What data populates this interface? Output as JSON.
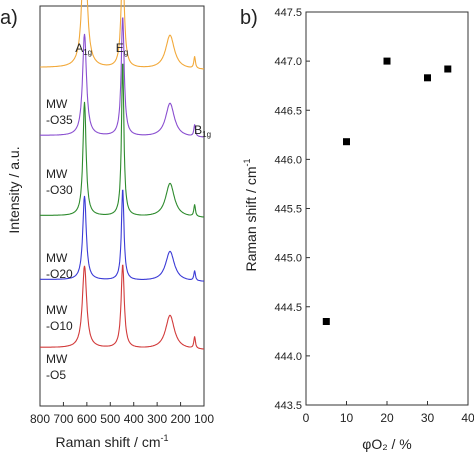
{
  "chart_data": [
    {
      "panel_label": "a)",
      "type": "line",
      "xlabel": "Raman shift / cm",
      "xlabel_sup": "-1",
      "ylabel": "Intensity / a.u.",
      "xlim": [
        800,
        100
      ],
      "xticks": [
        800,
        700,
        600,
        500,
        400,
        300,
        200,
        100
      ],
      "grid": false,
      "peak_labels": [
        {
          "main": "A",
          "sub": "1g",
          "x": 605
        },
        {
          "main": "E",
          "sub": "g",
          "x": 450
        },
        {
          "main": "B",
          "sub": "1g",
          "x": 140
        }
      ],
      "series": [
        {
          "name": "MW\n-O35",
          "name_lines": [
            "MW",
            "-O35"
          ],
          "color": "#f2a93b",
          "baseline": 0.84,
          "peaks": [
            [
              610,
              0.38,
              22
            ],
            [
              447,
              0.27,
              16
            ],
            [
              245,
              0.085,
              45
            ],
            [
              140,
              0.03,
              8
            ]
          ]
        },
        {
          "name": "MW\n-O30",
          "name_lines": [
            "MW",
            "-O30"
          ],
          "color": "#8a4fd0",
          "baseline": 0.67,
          "peaks": [
            [
              610,
              0.255,
              20
            ],
            [
              447,
              0.3,
              15
            ],
            [
              245,
              0.085,
              45
            ],
            [
              140,
              0.03,
              8
            ]
          ]
        },
        {
          "name": "MW\n-O20",
          "name_lines": [
            "MW",
            "-O20"
          ],
          "color": "#2e8b2e",
          "baseline": 0.47,
          "peaks": [
            [
              610,
              0.285,
              16
            ],
            [
              447,
              0.39,
              12
            ],
            [
              245,
              0.085,
              45
            ],
            [
              140,
              0.03,
              8
            ]
          ]
        },
        {
          "name": "MW\n-O10",
          "name_lines": [
            "MW",
            "-O10"
          ],
          "color": "#3b3bd6",
          "baseline": 0.31,
          "peaks": [
            [
              610,
              0.21,
              18
            ],
            [
              447,
              0.23,
              13
            ],
            [
              245,
              0.075,
              45
            ],
            [
              140,
              0.025,
              8
            ]
          ]
        },
        {
          "name": "MW\n-O5",
          "name_lines": [
            "MW",
            "-O5"
          ],
          "color": "#d23b3b",
          "baseline": 0.14,
          "peaks": [
            [
              610,
              0.205,
              22
            ],
            [
              447,
              0.21,
              16
            ],
            [
              245,
              0.085,
              45
            ],
            [
              140,
              0.03,
              8
            ]
          ]
        }
      ]
    },
    {
      "panel_label": "b)",
      "type": "scatter",
      "xlabel": "φO₂ / %",
      "ylabel": "Raman shift / cm",
      "ylabel_sup": "-1",
      "xlim": [
        0,
        40
      ],
      "ylim": [
        443.5,
        447.5
      ],
      "xticks": [
        0,
        10,
        20,
        30,
        40
      ],
      "yticks": [
        443.5,
        444.0,
        444.5,
        445.0,
        445.5,
        446.0,
        446.5,
        447.0,
        447.5
      ],
      "grid": false,
      "x": [
        5,
        10,
        20,
        30,
        35
      ],
      "y": [
        444.35,
        446.18,
        447.0,
        446.83,
        446.92
      ]
    }
  ]
}
